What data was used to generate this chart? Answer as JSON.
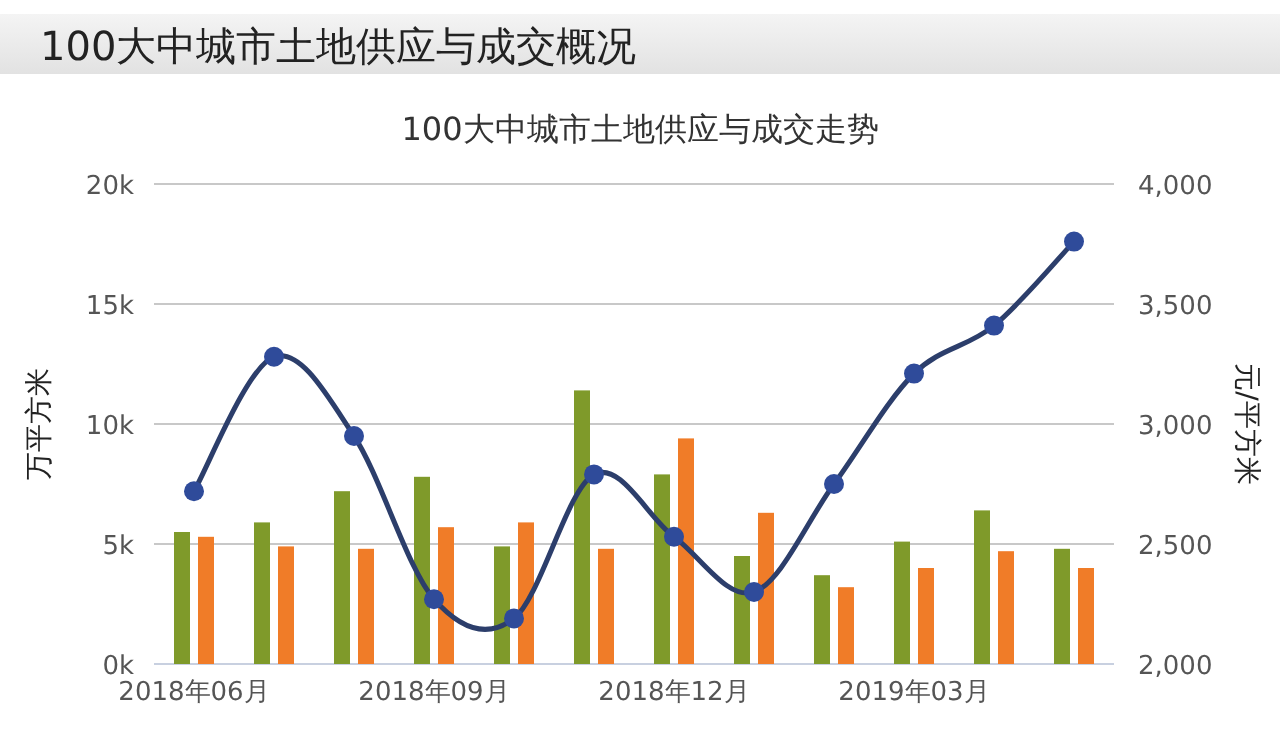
{
  "chart_data": {
    "type": "bar",
    "title": "100大中城市土地供应与成交概况",
    "subtitle": "100大中城市土地供应与成交走势",
    "ylabel": "万平方米",
    "y2label": "元/平方米",
    "categories": [
      "2018年06月",
      null,
      null,
      "2018年09月",
      null,
      null,
      "2018年12月",
      null,
      null,
      "2019年03月",
      null,
      null
    ],
    "series": [
      {
        "color": "#7f9a2a",
        "values": [
          5.5,
          5.9,
          7.2,
          7.8,
          4.9,
          11.4,
          7.9,
          4.5,
          3.7,
          5.1,
          6.4,
          4.8
        ]
      },
      {
        "color": "#f07c28",
        "values": [
          5.3,
          4.9,
          4.8,
          5.7,
          5.9,
          4.8,
          9.4,
          6.3,
          3.2,
          4.0,
          4.7,
          4.0
        ]
      },
      {
        "type": "line",
        "axis": "y2",
        "color": "#2c3e6b",
        "marker": "circle",
        "values": [
          2720,
          3280,
          2950,
          2270,
          2190,
          2790,
          2530,
          2300,
          2750,
          3210,
          3410,
          3760
        ]
      }
    ],
    "ylim": [
      0,
      20
    ],
    "yticks": [
      {
        "value": 0,
        "label": "0k"
      },
      {
        "value": 5,
        "label": "5k"
      },
      {
        "value": 10,
        "label": "10k"
      },
      {
        "value": 15,
        "label": "15k"
      },
      {
        "value": 20,
        "label": "20k"
      }
    ],
    "y2lim": [
      2000,
      4000
    ],
    "y2ticks": [
      {
        "value": 2000,
        "label": "2,000"
      },
      {
        "value": 2500,
        "label": "2,500"
      },
      {
        "value": 3000,
        "label": "3,000"
      },
      {
        "value": 3500,
        "label": "3,500"
      },
      {
        "value": 4000,
        "label": "4,000"
      }
    ],
    "grid": "y"
  }
}
